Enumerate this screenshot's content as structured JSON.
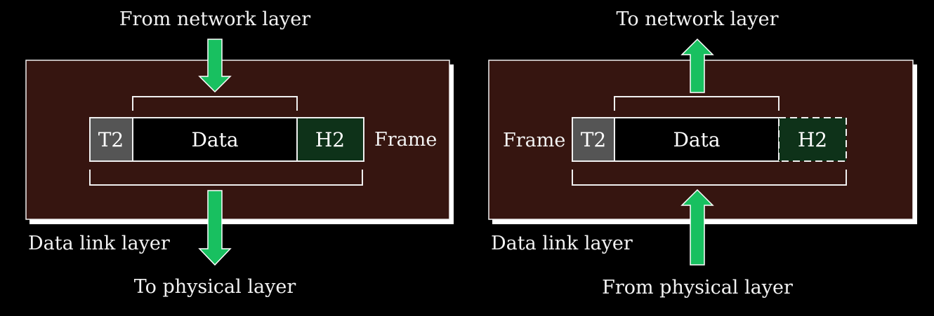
{
  "colors": {
    "background": "#000000",
    "layer_box": "#361510",
    "layer_box_shadow": "#ffffff",
    "arrow": "#18c060",
    "trailer_cell": "#555555",
    "data_cell": "#000000",
    "header_cell": "#0e3219",
    "text": "#f2f2f2"
  },
  "sender": {
    "top_label": "From network layer",
    "bottom_label": "To physical layer",
    "layer_label": "Data link layer",
    "frame_label": "Frame",
    "trailer": "T2",
    "data": "Data",
    "header": "H2",
    "arrow_in": "down-arrow-icon",
    "arrow_out": "down-arrow-icon"
  },
  "receiver": {
    "top_label": "To network layer",
    "bottom_label": "From physical layer",
    "layer_label": "Data link layer",
    "frame_label": "Frame",
    "trailer": "T2",
    "data": "Data",
    "header": "H2",
    "arrow_in": "up-arrow-icon",
    "arrow_out": "up-arrow-icon"
  }
}
